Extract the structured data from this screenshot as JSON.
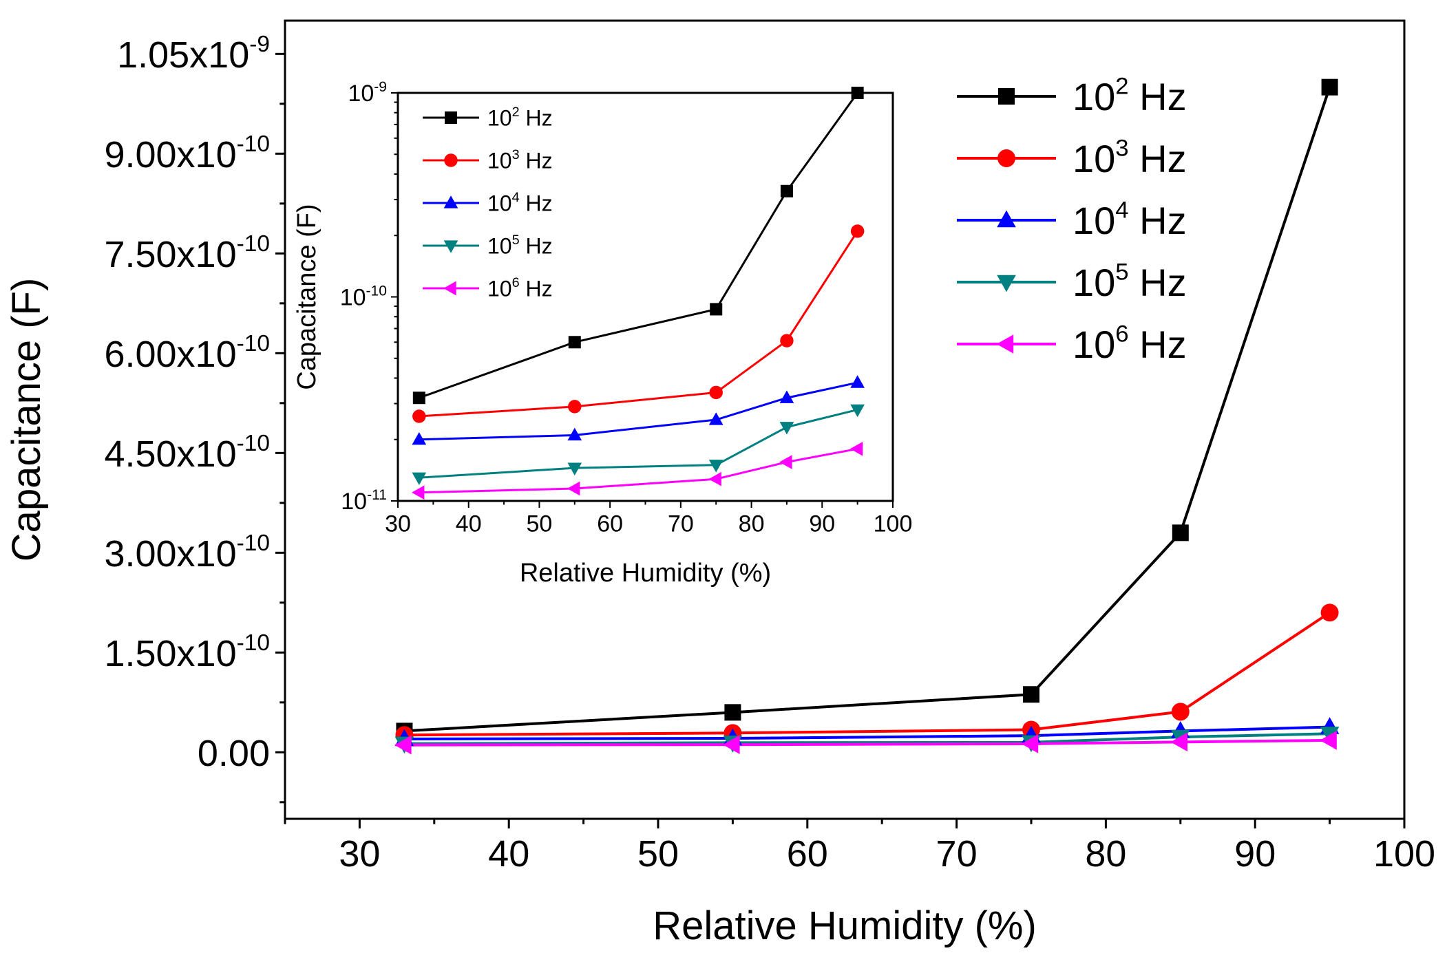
{
  "chart_data": [
    {
      "id": "main",
      "type": "line",
      "title": "",
      "xlabel": "Relative Humidity (%)",
      "ylabel": "Capacitance (F)",
      "xlim": [
        25,
        100
      ],
      "ylim": [
        -1e-10,
        1.1e-09
      ],
      "xscale": "linear",
      "yscale": "linear",
      "x_ticks": [
        {
          "v": 30,
          "label": "30"
        },
        {
          "v": 40,
          "label": "40"
        },
        {
          "v": 50,
          "label": "50"
        },
        {
          "v": 60,
          "label": "60"
        },
        {
          "v": 70,
          "label": "70"
        },
        {
          "v": 80,
          "label": "80"
        },
        {
          "v": 90,
          "label": "90"
        },
        {
          "v": 100,
          "label": "100"
        }
      ],
      "y_ticks": [
        {
          "v": 0,
          "label": "0.00",
          "mant": "0.00",
          "exp": ""
        },
        {
          "v": 1.5e-10,
          "label": "1.50x10-10",
          "mant": "1.50x10",
          "exp": "-10"
        },
        {
          "v": 3e-10,
          "label": "3.00x10-10",
          "mant": "3.00x10",
          "exp": "-10"
        },
        {
          "v": 4.5e-10,
          "label": "4.50x10-10",
          "mant": "4.50x10",
          "exp": "-10"
        },
        {
          "v": 6e-10,
          "label": "6.00x10-10",
          "mant": "6.00x10",
          "exp": "-10"
        },
        {
          "v": 7.5e-10,
          "label": "7.50x10-10",
          "mant": "7.50x10",
          "exp": "-10"
        },
        {
          "v": 9e-10,
          "label": "9.00x10-10",
          "mant": "9.00x10",
          "exp": "-10"
        },
        {
          "v": 1.05e-09,
          "label": "1.05x10-9",
          "mant": "1.05x10",
          "exp": "-9"
        }
      ],
      "legend_position": "top-right",
      "x": [
        33,
        55,
        75,
        85,
        95
      ],
      "series": [
        {
          "name": "10^2 Hz",
          "base": "10",
          "exp": "2",
          "unit": "Hz",
          "color": "#000000",
          "marker": "square",
          "values": [
            3.2e-11,
            6e-11,
            8.7e-11,
            3.3e-10,
            1e-09
          ]
        },
        {
          "name": "10^3 Hz",
          "base": "10",
          "exp": "3",
          "unit": "Hz",
          "color": "#ff0000",
          "marker": "circle",
          "values": [
            2.6e-11,
            2.9e-11,
            3.4e-11,
            6.1e-11,
            2.1e-10
          ]
        },
        {
          "name": "10^4 Hz",
          "base": "10",
          "exp": "4",
          "unit": "Hz",
          "color": "#0000ff",
          "marker": "triangle-up",
          "values": [
            2e-11,
            2.1e-11,
            2.5e-11,
            3.2e-11,
            3.8e-11
          ]
        },
        {
          "name": "10^5 Hz",
          "base": "10",
          "exp": "5",
          "unit": "Hz",
          "color": "#008080",
          "marker": "triangle-down",
          "values": [
            1.3e-11,
            1.45e-11,
            1.5e-11,
            2.3e-11,
            2.8e-11
          ]
        },
        {
          "name": "10^6 Hz",
          "base": "10",
          "exp": "6",
          "unit": "Hz",
          "color": "#ff00ff",
          "marker": "triangle-left",
          "values": [
            1.1e-11,
            1.15e-11,
            1.28e-11,
            1.55e-11,
            1.8e-11
          ]
        }
      ]
    },
    {
      "id": "inset",
      "type": "line",
      "title": "",
      "xlabel": "Relative Humidity (%)",
      "ylabel": "Capacitance (F)",
      "xlim": [
        30,
        100
      ],
      "ylim": [
        1e-11,
        1e-09
      ],
      "xscale": "linear",
      "yscale": "log",
      "x_ticks": [
        {
          "v": 30,
          "label": "30"
        },
        {
          "v": 40,
          "label": "40"
        },
        {
          "v": 50,
          "label": "50"
        },
        {
          "v": 60,
          "label": "60"
        },
        {
          "v": 70,
          "label": "70"
        },
        {
          "v": 80,
          "label": "80"
        },
        {
          "v": 90,
          "label": "90"
        },
        {
          "v": 100,
          "label": "100"
        }
      ],
      "y_ticks": [
        {
          "v": 1e-11,
          "label": "10-11",
          "mant": "10",
          "exp": "-11"
        },
        {
          "v": 1e-10,
          "label": "10-10",
          "mant": "10",
          "exp": "-10"
        },
        {
          "v": 1e-09,
          "label": "10-9",
          "mant": "10",
          "exp": "-9"
        }
      ],
      "legend_position": "top-left",
      "x": [
        33,
        55,
        75,
        85,
        95
      ],
      "series": [
        {
          "name": "10^2 Hz",
          "base": "10",
          "exp": "2",
          "unit": "Hz",
          "color": "#000000",
          "marker": "square",
          "values": [
            3.2e-11,
            6e-11,
            8.7e-11,
            3.3e-10,
            1e-09
          ]
        },
        {
          "name": "10^3 Hz",
          "base": "10",
          "exp": "3",
          "unit": "Hz",
          "color": "#ff0000",
          "marker": "circle",
          "values": [
            2.6e-11,
            2.9e-11,
            3.4e-11,
            6.1e-11,
            2.1e-10
          ]
        },
        {
          "name": "10^4 Hz",
          "base": "10",
          "exp": "4",
          "unit": "Hz",
          "color": "#0000ff",
          "marker": "triangle-up",
          "values": [
            2e-11,
            2.1e-11,
            2.5e-11,
            3.2e-11,
            3.8e-11
          ]
        },
        {
          "name": "10^5 Hz",
          "base": "10",
          "exp": "5",
          "unit": "Hz",
          "color": "#008080",
          "marker": "triangle-down",
          "values": [
            1.3e-11,
            1.45e-11,
            1.5e-11,
            2.3e-11,
            2.8e-11
          ]
        },
        {
          "name": "10^6 Hz",
          "base": "10",
          "exp": "6",
          "unit": "Hz",
          "color": "#ff00ff",
          "marker": "triangle-left",
          "values": [
            1.1e-11,
            1.15e-11,
            1.28e-11,
            1.55e-11,
            1.8e-11
          ]
        }
      ]
    }
  ]
}
